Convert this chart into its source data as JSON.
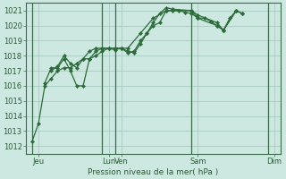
{
  "bg_color": "#cce8e0",
  "grid_color": "#a8ccc4",
  "line_color": "#2d6b3a",
  "marker_color": "#2d6b3a",
  "xlabel": "Pression niveau de la mer( hPa )",
  "ylim": [
    1011.5,
    1021.5
  ],
  "yticks": [
    1012,
    1013,
    1014,
    1015,
    1016,
    1017,
    1018,
    1019,
    1020,
    1021
  ],
  "xlim": [
    0,
    20
  ],
  "xtick_labels": [
    "Jeu",
    "Lun",
    "Ven",
    "Sam",
    "Dim"
  ],
  "xtick_positions": [
    1,
    6.5,
    7.5,
    13.5,
    19.5
  ],
  "vline_positions": [
    0.5,
    6,
    7,
    13,
    19
  ],
  "series1": [
    [
      0.5,
      1012.3
    ],
    [
      1.0,
      1013.5
    ],
    [
      1.5,
      1016.0
    ],
    [
      2.0,
      1016.5
    ],
    [
      2.5,
      1017.0
    ],
    [
      3.0,
      1017.2
    ],
    [
      3.5,
      1017.2
    ],
    [
      4.0,
      1017.5
    ],
    [
      4.5,
      1017.8
    ],
    [
      5.0,
      1017.8
    ],
    [
      5.5,
      1018.0
    ],
    [
      6.0,
      1018.3
    ],
    [
      6.5,
      1018.5
    ],
    [
      7.0,
      1018.4
    ],
    [
      7.5,
      1018.5
    ],
    [
      8.0,
      1018.3
    ],
    [
      8.5,
      1018.2
    ],
    [
      9.0,
      1018.8
    ],
    [
      9.5,
      1019.5
    ],
    [
      10.0,
      1020.0
    ],
    [
      10.5,
      1020.2
    ],
    [
      11.0,
      1021.0
    ],
    [
      11.5,
      1021.0
    ],
    [
      12.0,
      1021.0
    ],
    [
      12.5,
      1020.9
    ],
    [
      13.0,
      1020.8
    ],
    [
      13.5,
      1020.5
    ],
    [
      14.0,
      1020.5
    ],
    [
      14.5,
      1020.3
    ],
    [
      15.0,
      1020.0
    ],
    [
      15.5,
      1019.7
    ],
    [
      16.0,
      1020.5
    ],
    [
      16.5,
      1021.0
    ],
    [
      17.0,
      1020.8
    ]
  ],
  "series2": [
    [
      1.5,
      1016.2
    ],
    [
      2.0,
      1017.2
    ],
    [
      2.5,
      1017.2
    ],
    [
      3.0,
      1017.8
    ],
    [
      3.5,
      1017.0
    ],
    [
      4.0,
      1016.0
    ],
    [
      4.5,
      1016.0
    ],
    [
      5.0,
      1017.8
    ],
    [
      5.5,
      1018.3
    ],
    [
      6.0,
      1018.5
    ],
    [
      6.5,
      1018.5
    ],
    [
      7.0,
      1018.5
    ],
    [
      7.5,
      1018.5
    ],
    [
      8.0,
      1018.2
    ],
    [
      8.5,
      1018.3
    ],
    [
      9.0,
      1019.0
    ],
    [
      9.5,
      1019.5
    ],
    [
      10.0,
      1020.2
    ],
    [
      10.5,
      1020.8
    ],
    [
      11.0,
      1021.2
    ],
    [
      11.5,
      1021.1
    ],
    [
      13.0,
      1021.0
    ],
    [
      13.5,
      1020.5
    ],
    [
      15.0,
      1020.0
    ],
    [
      15.5,
      1019.7
    ],
    [
      16.5,
      1021.0
    ],
    [
      17.0,
      1020.8
    ]
  ],
  "series3": [
    [
      2.0,
      1017.0
    ],
    [
      2.5,
      1017.3
    ],
    [
      3.0,
      1018.0
    ],
    [
      3.5,
      1017.5
    ],
    [
      4.0,
      1017.2
    ],
    [
      4.5,
      1017.8
    ],
    [
      5.0,
      1018.3
    ],
    [
      5.5,
      1018.5
    ],
    [
      6.0,
      1018.5
    ],
    [
      6.5,
      1018.5
    ],
    [
      7.0,
      1018.5
    ],
    [
      7.5,
      1018.5
    ],
    [
      8.0,
      1018.5
    ],
    [
      9.0,
      1019.5
    ],
    [
      10.0,
      1020.5
    ],
    [
      11.0,
      1021.0
    ],
    [
      13.0,
      1021.0
    ],
    [
      13.5,
      1020.7
    ],
    [
      15.0,
      1020.2
    ],
    [
      15.5,
      1019.7
    ],
    [
      16.5,
      1021.0
    ]
  ]
}
